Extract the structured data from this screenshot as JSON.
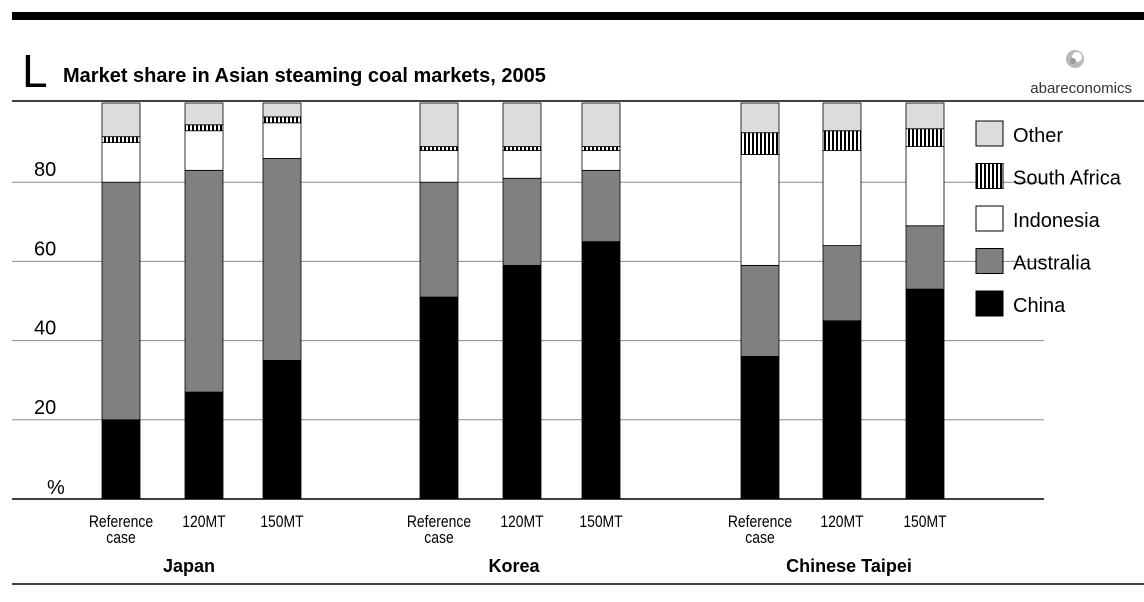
{
  "header": {
    "corner_mark": "L",
    "title": "Market share in Asian steaming coal markets, 2005",
    "brand": "abareconomics"
  },
  "chart_data": {
    "type": "bar",
    "stacked": true,
    "title": "Market share in Asian steaming coal markets, 2005",
    "ylabel": "%",
    "ylim": [
      0,
      100
    ],
    "yticks": [
      20,
      40,
      60,
      80
    ],
    "grid": true,
    "legend_position": "right",
    "groups": [
      {
        "name": "Japan",
        "categories": [
          [
            "Reference",
            "case"
          ],
          [
            "120MT"
          ],
          [
            "150MT"
          ]
        ]
      },
      {
        "name": "Korea",
        "categories": [
          [
            "Reference",
            "case"
          ],
          [
            "120MT"
          ],
          [
            "150MT"
          ]
        ]
      },
      {
        "name": "Chinese Taipei",
        "categories": [
          [
            "Reference",
            "case"
          ],
          [
            "120MT"
          ],
          [
            "150MT"
          ]
        ]
      }
    ],
    "series": [
      {
        "name": "China",
        "color": "#000000",
        "pattern": "solid",
        "values": [
          20,
          27,
          35,
          51,
          59,
          65,
          36,
          45,
          53
        ]
      },
      {
        "name": "Australia",
        "color": "#808080",
        "pattern": "solid",
        "values": [
          60,
          56,
          51,
          29,
          22,
          18,
          23,
          19,
          16
        ]
      },
      {
        "name": "Indonesia",
        "color": "#ffffff",
        "pattern": "solid",
        "values": [
          10,
          10,
          9,
          8,
          7,
          5,
          28,
          24,
          20
        ]
      },
      {
        "name": "South Africa",
        "color": "#000000",
        "pattern": "vertical-stripes",
        "values": [
          1.5,
          1.5,
          1.5,
          1,
          1,
          1,
          5.5,
          5,
          4.5
        ]
      },
      {
        "name": "Other",
        "color": "#dcdcdc",
        "pattern": "solid",
        "values": [
          8.5,
          5.5,
          3.5,
          11,
          11,
          11,
          7.5,
          7,
          6.5
        ]
      }
    ],
    "legend_order": [
      "Other",
      "South Africa",
      "Indonesia",
      "Australia",
      "China"
    ]
  }
}
